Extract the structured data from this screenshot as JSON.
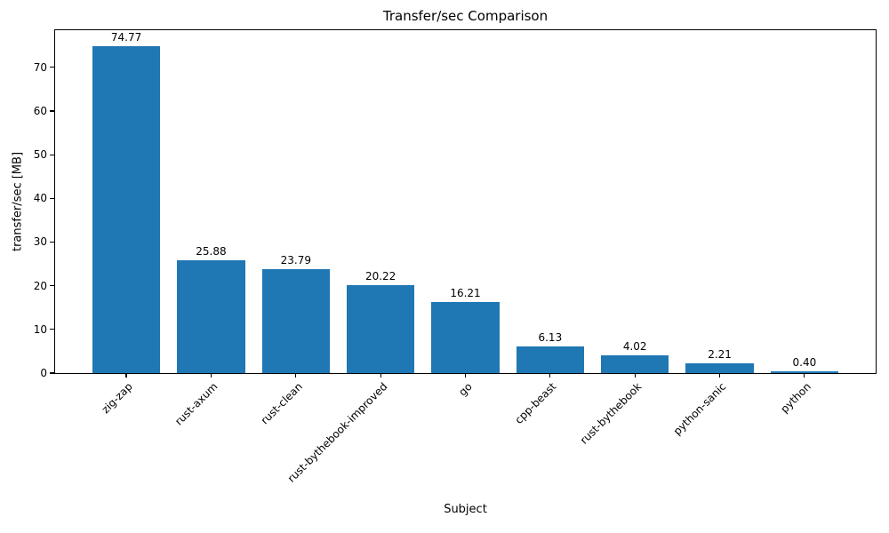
{
  "chart_data": {
    "type": "bar",
    "title": "Transfer/sec Comparison",
    "xlabel": "Subject",
    "ylabel": "transfer/sec [MB]",
    "categories": [
      "zig-zap",
      "rust-axum",
      "rust-clean",
      "rust-bythebook-improved",
      "go",
      "cpp-beast",
      "rust-bythebook",
      "python-sanic",
      "python"
    ],
    "values": [
      74.77,
      25.88,
      23.79,
      20.22,
      16.21,
      6.13,
      4.02,
      2.21,
      0.4
    ],
    "value_labels": [
      "74.77",
      "25.88",
      "23.79",
      "20.22",
      "16.21",
      "6.13",
      "4.02",
      "2.21",
      "0.40"
    ],
    "yticks": [
      0,
      10,
      20,
      30,
      40,
      50,
      60,
      70
    ],
    "ylim": [
      0,
      78.5
    ],
    "xtick_rotation_deg": 45,
    "bar_color": "#1f77b4",
    "text_color": "#000000",
    "grid": false,
    "legend": null
  }
}
